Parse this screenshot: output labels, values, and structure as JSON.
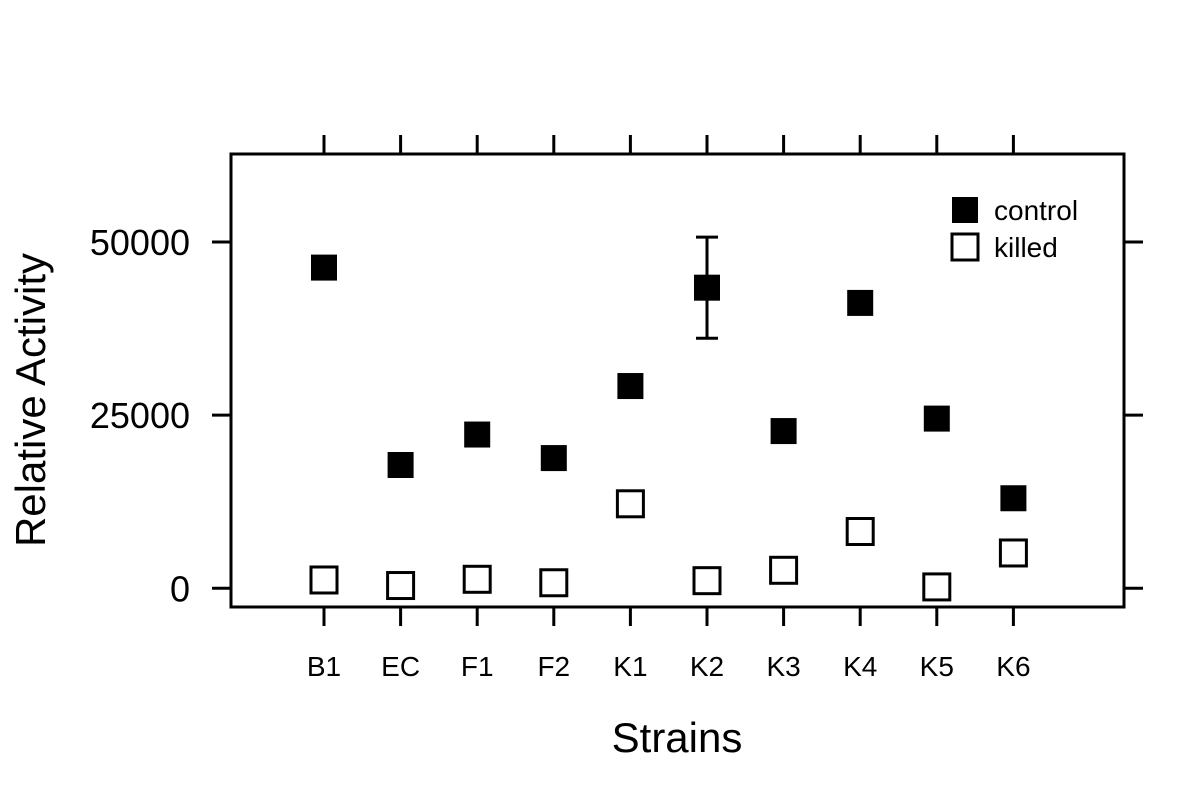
{
  "chart_data": {
    "type": "scatter",
    "title": "",
    "xlabel": "Strains",
    "ylabel": "Relative Activity",
    "categories": [
      "B1",
      "EC",
      "F1",
      "F2",
      "K1",
      "K2",
      "K3",
      "K4",
      "K5",
      "K6"
    ],
    "yticks": [
      0,
      25000,
      50000
    ],
    "ylim": [
      -2700,
      62700
    ],
    "grid": false,
    "legend_position": "top-right",
    "series": [
      {
        "name": "control",
        "marker": "filled-square",
        "color": "#000000",
        "values": [
          46300,
          17800,
          22200,
          18800,
          29200,
          43400,
          22700,
          41200,
          24500,
          13000
        ],
        "error": [
          null,
          null,
          null,
          1100,
          null,
          7300,
          null,
          null,
          null,
          null
        ]
      },
      {
        "name": "killed",
        "marker": "open-square",
        "color": "#000000",
        "values": [
          1200,
          400,
          1300,
          800,
          12200,
          1100,
          2600,
          8200,
          200,
          5100
        ]
      }
    ]
  }
}
